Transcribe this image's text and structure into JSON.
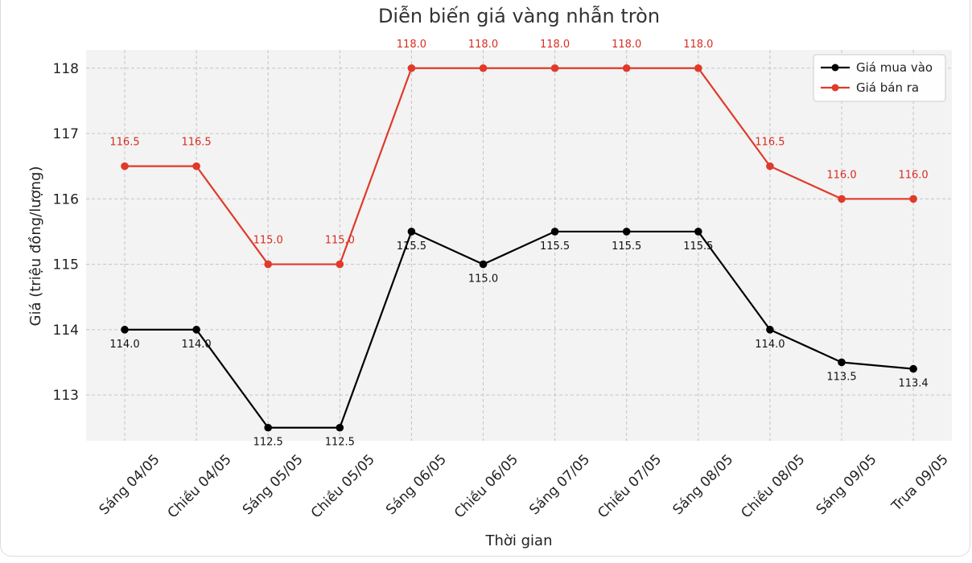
{
  "chart_data": {
    "type": "line",
    "title": "Diễn biến giá vàng nhẫn tròn",
    "xlabel": "Thời gian",
    "ylabel": "Giá (triệu đồng/lượng)",
    "categories": [
      "Sáng 04/05",
      "Chiều 04/05",
      "Sáng 05/05",
      "Chiều 05/05",
      "Sáng 06/05",
      "Chiều 06/05",
      "Sáng 07/05",
      "Chiều 07/05",
      "Sáng 08/05",
      "Chiều 08/05",
      "Sáng 09/05",
      "Trưa 09/05"
    ],
    "ylim": [
      112.3,
      118.28
    ],
    "yticks": [
      113,
      114,
      115,
      116,
      117,
      118
    ],
    "grid": true,
    "legend_position": "top-right",
    "series": [
      {
        "name": "Giá mua vào",
        "color": "#000000",
        "values": [
          114.0,
          114.0,
          112.5,
          112.5,
          115.5,
          115.0,
          115.5,
          115.5,
          115.5,
          114.0,
          113.5,
          113.4
        ],
        "labels": [
          "114.0",
          "114.0",
          "112.5",
          "112.5",
          "115.5",
          "115.0",
          "115.5",
          "115.5",
          "115.5",
          "114.0",
          "113.5",
          "113.4"
        ]
      },
      {
        "name": "Giá bán ra",
        "color": "#e03a2a",
        "values": [
          116.5,
          116.5,
          115.0,
          115.0,
          118.0,
          118.0,
          118.0,
          118.0,
          118.0,
          116.5,
          116.0,
          116.0
        ],
        "labels": [
          "116.5",
          "116.5",
          "115.0",
          "115.0",
          "118.0",
          "118.0",
          "118.0",
          "118.0",
          "118.0",
          "116.5",
          "116.0",
          "116.0"
        ]
      }
    ]
  }
}
